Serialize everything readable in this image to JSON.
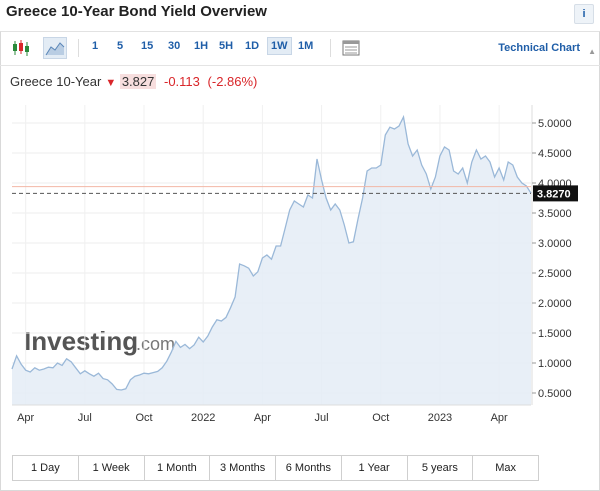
{
  "header": {
    "title": "Greece 10-Year Bond Yield Overview",
    "info_icon": "i"
  },
  "toolbar": {
    "intervals": [
      "1",
      "5",
      "15",
      "30",
      "1H",
      "5H",
      "1D",
      "1W",
      "1M"
    ],
    "active_interval": "1W",
    "technical_chart_label": "Technical Chart"
  },
  "legend": {
    "name": "Greece 10-Year",
    "price": "3.827",
    "change": "-0.113",
    "change_pct": "(-2.86%)"
  },
  "ranges": [
    "1 Day",
    "1 Week",
    "1 Month",
    "3 Months",
    "6 Months",
    "1 Year",
    "5 years",
    "Max"
  ],
  "watermark": {
    "brand": "Investing",
    "suffix": ".com"
  },
  "chart_data": {
    "type": "area",
    "x_ticks": [
      {
        "label": "Apr",
        "t": 3
      },
      {
        "label": "Jul",
        "t": 16
      },
      {
        "label": "Oct",
        "t": 29
      },
      {
        "label": "2022",
        "t": 42
      },
      {
        "label": "Apr",
        "t": 55
      },
      {
        "label": "Jul",
        "t": 68
      },
      {
        "label": "Oct",
        "t": 81
      },
      {
        "label": "2023",
        "t": 94
      },
      {
        "label": "Apr",
        "t": 107
      }
    ],
    "y_ticks": [
      "5.0000",
      "4.5000",
      "4.0000",
      "3.5000",
      "3.0000",
      "2.5000",
      "2.0000",
      "1.5000",
      "1.0000",
      "0.5000"
    ],
    "ylim": [
      0.3,
      5.3
    ],
    "xlim": [
      0,
      114
    ],
    "last_value": 3.827,
    "last_label": "3.8270",
    "reference_value": 3.94,
    "colors": {
      "line": "#9ab8d8",
      "fill": "#e4ecf6",
      "reference": "#f2b7a6",
      "last_line": "#555555",
      "label_bg": "#111111"
    },
    "points": [
      [
        0,
        0.9
      ],
      [
        1,
        1.12
      ],
      [
        2,
        0.98
      ],
      [
        3,
        0.88
      ],
      [
        4,
        0.85
      ],
      [
        5,
        0.92
      ],
      [
        6,
        0.88
      ],
      [
        7,
        0.9
      ],
      [
        8,
        0.93
      ],
      [
        9,
        0.92
      ],
      [
        10,
        1.0
      ],
      [
        11,
        0.96
      ],
      [
        12,
        1.07
      ],
      [
        13,
        1.02
      ],
      [
        14,
        0.92
      ],
      [
        15,
        0.82
      ],
      [
        16,
        0.87
      ],
      [
        17,
        0.82
      ],
      [
        18,
        0.78
      ],
      [
        19,
        0.83
      ],
      [
        20,
        0.74
      ],
      [
        21,
        0.72
      ],
      [
        22,
        0.65
      ],
      [
        23,
        0.56
      ],
      [
        24,
        0.55
      ],
      [
        25,
        0.57
      ],
      [
        26,
        0.72
      ],
      [
        27,
        0.78
      ],
      [
        28,
        0.8
      ],
      [
        29,
        0.83
      ],
      [
        30,
        0.82
      ],
      [
        31,
        0.84
      ],
      [
        32,
        0.86
      ],
      [
        33,
        0.92
      ],
      [
        34,
        1.03
      ],
      [
        35,
        1.18
      ],
      [
        36,
        1.36
      ],
      [
        37,
        1.26
      ],
      [
        38,
        1.31
      ],
      [
        39,
        1.24
      ],
      [
        40,
        1.3
      ],
      [
        41,
        1.43
      ],
      [
        42,
        1.35
      ],
      [
        43,
        1.45
      ],
      [
        44,
        1.6
      ],
      [
        45,
        1.72
      ],
      [
        46,
        1.7
      ],
      [
        47,
        1.76
      ],
      [
        48,
        1.92
      ],
      [
        49,
        2.1
      ],
      [
        50,
        2.65
      ],
      [
        51,
        2.62
      ],
      [
        52,
        2.58
      ],
      [
        53,
        2.45
      ],
      [
        54,
        2.52
      ],
      [
        55,
        2.75
      ],
      [
        56,
        2.8
      ],
      [
        57,
        2.73
      ],
      [
        58,
        2.95
      ],
      [
        59,
        2.95
      ],
      [
        60,
        3.25
      ],
      [
        61,
        3.55
      ],
      [
        62,
        3.7
      ],
      [
        63,
        3.65
      ],
      [
        64,
        3.6
      ],
      [
        65,
        3.8
      ],
      [
        66,
        3.75
      ],
      [
        67,
        4.4
      ],
      [
        68,
        4.05
      ],
      [
        69,
        3.75
      ],
      [
        70,
        3.55
      ],
      [
        71,
        3.65
      ],
      [
        72,
        3.55
      ],
      [
        73,
        3.3
      ],
      [
        74,
        3.0
      ],
      [
        75,
        3.02
      ],
      [
        76,
        3.4
      ],
      [
        77,
        3.75
      ],
      [
        78,
        4.2
      ],
      [
        79,
        4.25
      ],
      [
        80,
        4.25
      ],
      [
        81,
        4.3
      ],
      [
        82,
        4.8
      ],
      [
        83,
        4.93
      ],
      [
        84,
        4.9
      ],
      [
        85,
        4.95
      ],
      [
        86,
        5.1
      ],
      [
        87,
        4.65
      ],
      [
        88,
        4.45
      ],
      [
        89,
        4.55
      ],
      [
        90,
        4.3
      ],
      [
        91,
        4.15
      ],
      [
        92,
        3.9
      ],
      [
        93,
        4.1
      ],
      [
        94,
        4.45
      ],
      [
        95,
        4.6
      ],
      [
        96,
        4.55
      ],
      [
        97,
        4.2
      ],
      [
        98,
        4.15
      ],
      [
        99,
        4.25
      ],
      [
        100,
        4.0
      ],
      [
        101,
        4.35
      ],
      [
        102,
        4.55
      ],
      [
        103,
        4.4
      ],
      [
        104,
        4.45
      ],
      [
        105,
        4.35
      ],
      [
        106,
        4.1
      ],
      [
        107,
        4.25
      ],
      [
        108,
        4.05
      ],
      [
        109,
        4.35
      ],
      [
        110,
        4.3
      ],
      [
        111,
        4.1
      ],
      [
        112,
        4.0
      ],
      [
        113,
        3.95
      ],
      [
        114,
        3.83
      ]
    ]
  }
}
